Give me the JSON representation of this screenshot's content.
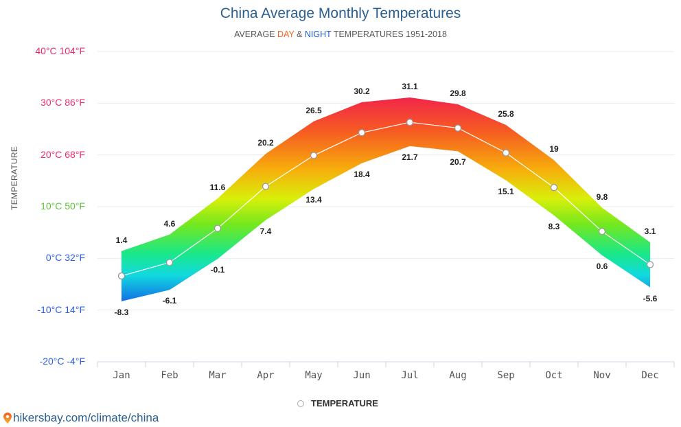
{
  "header": {
    "title": "China Average Monthly Temperatures",
    "subtitle_prefix": "AVERAGE ",
    "subtitle_day": "DAY",
    "subtitle_amp": " & ",
    "subtitle_night": "NIGHT",
    "subtitle_suffix": " TEMPERATURES 1951-2018"
  },
  "footer": {
    "source": "hikersbay.com/climate/china",
    "source_icon": "map-pin-icon",
    "legend_label": "TEMPERATURE"
  },
  "colors": {
    "title": "#2a5f8f",
    "day": "#f26522",
    "night": "#1e5bd8",
    "average_line": "#ffffff",
    "marker_stroke": "#999999"
  },
  "chart_data": {
    "type": "area",
    "title": "China Average Monthly Temperatures",
    "subtitle": "AVERAGE DAY & NIGHT TEMPERATURES 1951-2018",
    "ylabel": "TEMPERATURE",
    "xlabel": "",
    "ylim": [
      -20,
      40
    ],
    "grid": true,
    "legend_position": "bottom",
    "categories": [
      "Jan",
      "Feb",
      "Mar",
      "Apr",
      "May",
      "Jun",
      "Jul",
      "Aug",
      "Sep",
      "Oct",
      "Nov",
      "Dec"
    ],
    "y_ticks": [
      {
        "c": 40,
        "label": "40°C 104°F",
        "color": "#ee2a6b"
      },
      {
        "c": 30,
        "label": "30°C 86°F",
        "color": "#ee2a6b"
      },
      {
        "c": 20,
        "label": "20°C 68°F",
        "color": "#ee2a6b"
      },
      {
        "c": 10,
        "label": "10°C 50°F",
        "color": "#5fc23a"
      },
      {
        "c": 0,
        "label": "0°C 32°F",
        "color": "#2a5ee8"
      },
      {
        "c": -10,
        "label": "-10°C 14°F",
        "color": "#2a5ee8"
      },
      {
        "c": -20,
        "label": "-20°C -4°F",
        "color": "#2a5ee8"
      }
    ],
    "series": [
      {
        "name": "DAY",
        "values": [
          1.4,
          4.6,
          11.6,
          20.2,
          26.5,
          30.2,
          31.1,
          29.8,
          25.8,
          19,
          9.8,
          3.1
        ]
      },
      {
        "name": "NIGHT",
        "values": [
          -8.3,
          -6.1,
          -0.1,
          7.4,
          13.4,
          18.4,
          21.7,
          20.7,
          15.1,
          8.3,
          0.6,
          -5.6
        ]
      },
      {
        "name": "TEMPERATURE",
        "values": [
          -3.4,
          -0.8,
          5.8,
          13.9,
          19.9,
          24.3,
          26.3,
          25.2,
          20.4,
          13.7,
          5.2,
          -1.2
        ]
      }
    ]
  }
}
